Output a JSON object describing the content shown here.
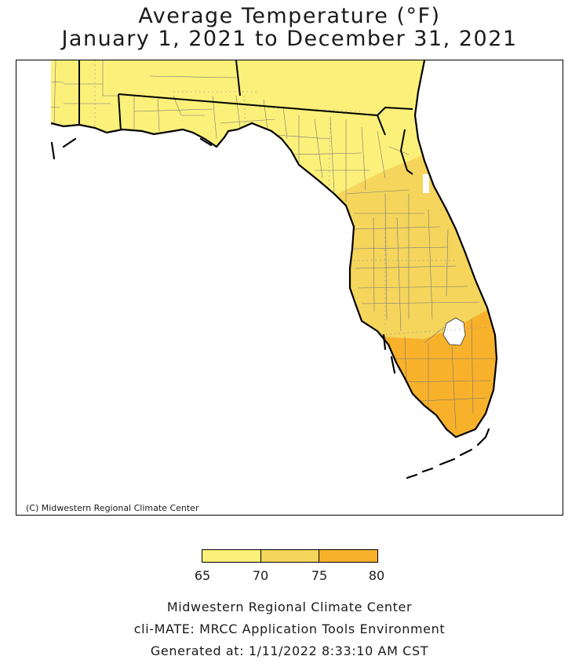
{
  "header": {
    "title_line1": "Average Temperature (°F)",
    "title_line2": "January 1, 2021 to December 31, 2021"
  },
  "map": {
    "region": "Florida",
    "credit": "(C) Midwestern Regional Climate Center",
    "zones": [
      {
        "name": "north-panhandle",
        "range": "65-70",
        "color": "#fbf07a"
      },
      {
        "name": "central",
        "range": "70-75",
        "color": "#f5d55c"
      },
      {
        "name": "south",
        "range": "75-80",
        "color": "#f8b12b"
      }
    ],
    "water_color": "#ffffff",
    "lake_color": "#ffffff"
  },
  "legend": {
    "colors": [
      "#fbf07a",
      "#f5d55c",
      "#f8b12b"
    ],
    "ticks": [
      "65",
      "70",
      "75",
      "80"
    ]
  },
  "footer": {
    "line1": "Midwestern Regional Climate Center",
    "line2": "cli-MATE: MRCC Application Tools Environment",
    "line3": "Generated at: 1/11/2022 8:33:10 AM CST"
  }
}
